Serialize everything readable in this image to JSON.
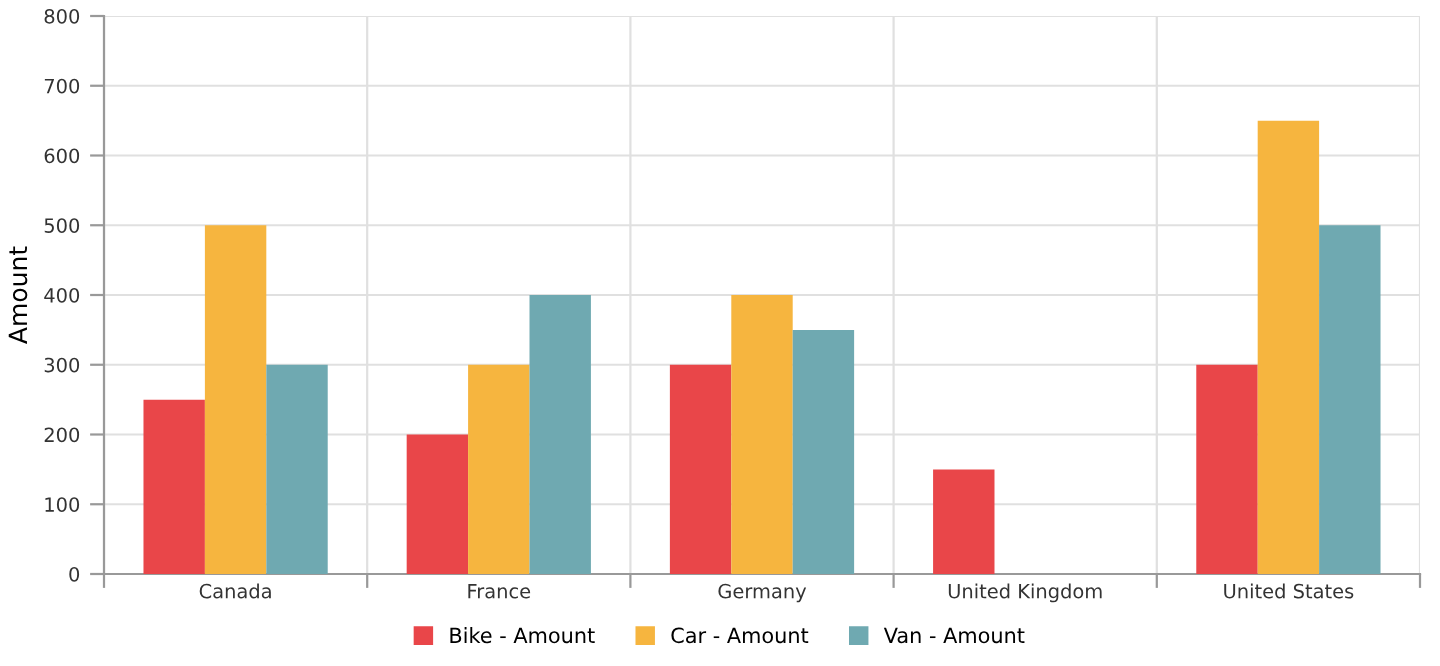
{
  "chart_data": {
    "type": "bar",
    "ylabel": "Amount",
    "categories": [
      "Canada",
      "France",
      "Germany",
      "United Kingdom",
      "United States"
    ],
    "series": [
      {
        "name": "Bike - Amount",
        "color": "#e94649",
        "values": [
          250,
          200,
          300,
          150,
          300
        ]
      },
      {
        "name": "Car - Amount",
        "color": "#f6b53f",
        "values": [
          500,
          300,
          400,
          null,
          650
        ]
      },
      {
        "name": "Van - Amount",
        "color": "#6fa9b1",
        "values": [
          300,
          400,
          350,
          null,
          500
        ]
      }
    ],
    "ylim": [
      0,
      800
    ],
    "yticks": [
      0,
      100,
      200,
      300,
      400,
      500,
      600,
      700,
      800
    ],
    "grid": true,
    "legend": "bottom"
  }
}
